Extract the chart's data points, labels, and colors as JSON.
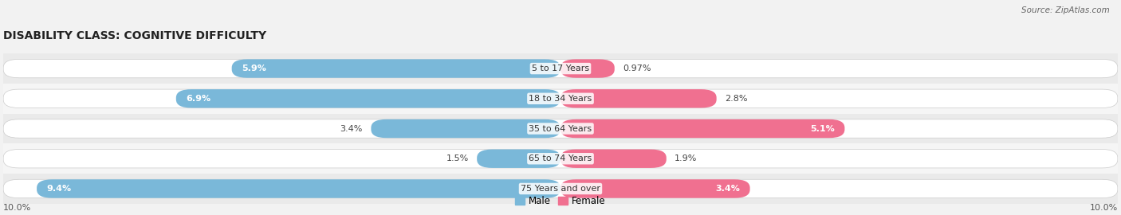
{
  "title": "DISABILITY CLASS: COGNITIVE DIFFICULTY",
  "source": "Source: ZipAtlas.com",
  "categories": [
    "5 to 17 Years",
    "18 to 34 Years",
    "35 to 64 Years",
    "65 to 74 Years",
    "75 Years and over"
  ],
  "male_values": [
    5.9,
    6.9,
    3.4,
    1.5,
    9.4
  ],
  "female_values": [
    0.97,
    2.8,
    5.1,
    1.9,
    3.4
  ],
  "male_labels": [
    "5.9%",
    "6.9%",
    "3.4%",
    "1.5%",
    "9.4%"
  ],
  "female_labels": [
    "0.97%",
    "2.8%",
    "5.1%",
    "1.9%",
    "3.4%"
  ],
  "male_color": "#7ab8d9",
  "female_color": "#f07090",
  "axis_label_left": "10.0%",
  "axis_label_right": "10.0%",
  "x_max": 10.0,
  "bar_height": 0.62,
  "bg_color": "#f2f2f2",
  "row_bg_even": "#eaeaea",
  "row_bg_odd": "#f5f5f5",
  "legend_male": "Male",
  "legend_female": "Female"
}
